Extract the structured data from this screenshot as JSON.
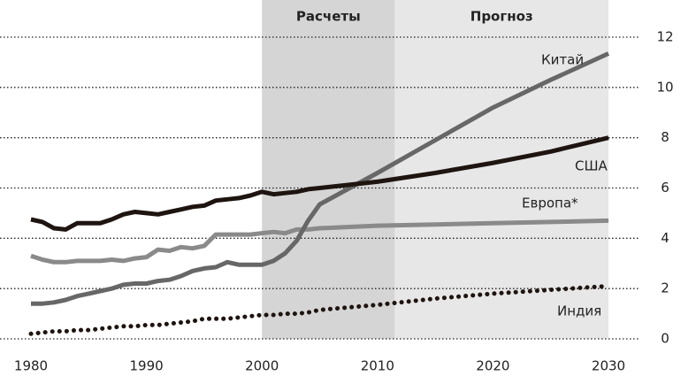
{
  "chart_data": {
    "type": "line",
    "regions": [
      {
        "label": "Расчеты",
        "start": 2000,
        "end": 2011.5,
        "color": "#d5d5d5"
      },
      {
        "label": "Прогноз",
        "start": 2011.5,
        "end": 2030,
        "color": "#e7e7e7"
      }
    ],
    "x": [
      1980,
      1981,
      1982,
      1983,
      1984,
      1985,
      1986,
      1987,
      1988,
      1989,
      1990,
      1991,
      1992,
      1993,
      1994,
      1995,
      1996,
      1997,
      1998,
      1999,
      2000,
      2001,
      2002,
      2003,
      2004,
      2005,
      2010,
      2015,
      2020,
      2025,
      2030
    ],
    "series": [
      {
        "name": "Европа*",
        "color": "#8a8a8a",
        "dash": false,
        "values": [
          3.3,
          3.15,
          3.05,
          3.05,
          3.1,
          3.1,
          3.1,
          3.15,
          3.1,
          3.2,
          3.25,
          3.55,
          3.5,
          3.65,
          3.6,
          3.7,
          4.15,
          4.15,
          4.15,
          4.15,
          4.2,
          4.25,
          4.2,
          4.35,
          4.35,
          4.4,
          4.5,
          4.55,
          4.6,
          4.65,
          4.7
        ]
      },
      {
        "name": "Китай",
        "color": "#676767",
        "dash": false,
        "values": [
          1.4,
          1.4,
          1.45,
          1.55,
          1.7,
          1.8,
          1.9,
          2.0,
          2.15,
          2.2,
          2.2,
          2.3,
          2.35,
          2.5,
          2.7,
          2.8,
          2.85,
          3.05,
          2.95,
          2.95,
          2.95,
          3.1,
          3.4,
          3.9,
          4.7,
          5.35,
          6.6,
          7.9,
          9.2,
          10.3,
          11.35
        ]
      },
      {
        "name": "США",
        "color": "#1e1410",
        "dash": false,
        "values": [
          4.75,
          4.65,
          4.4,
          4.35,
          4.6,
          4.6,
          4.6,
          4.75,
          4.95,
          5.05,
          5.0,
          4.95,
          5.05,
          5.15,
          5.25,
          5.3,
          5.5,
          5.55,
          5.6,
          5.7,
          5.85,
          5.75,
          5.8,
          5.85,
          5.95,
          6.0,
          6.25,
          6.6,
          7.0,
          7.45,
          8.0
        ]
      },
      {
        "name": "Индия",
        "color": "#1e1410",
        "dash": true,
        "values": [
          0.2,
          0.25,
          0.3,
          0.3,
          0.35,
          0.35,
          0.4,
          0.45,
          0.5,
          0.5,
          0.55,
          0.55,
          0.6,
          0.65,
          0.7,
          0.8,
          0.8,
          0.8,
          0.85,
          0.9,
          0.95,
          0.95,
          1.0,
          1.0,
          1.05,
          1.15,
          1.35,
          1.6,
          1.8,
          1.95,
          2.1
        ]
      }
    ],
    "xlim": [
      1980,
      2030
    ],
    "xticks": [
      1980,
      1990,
      2000,
      2010,
      2020,
      2030
    ],
    "ylim": [
      0,
      12
    ],
    "yticks": [
      0,
      2,
      4,
      6,
      8,
      10,
      12
    ],
    "grid": true
  }
}
